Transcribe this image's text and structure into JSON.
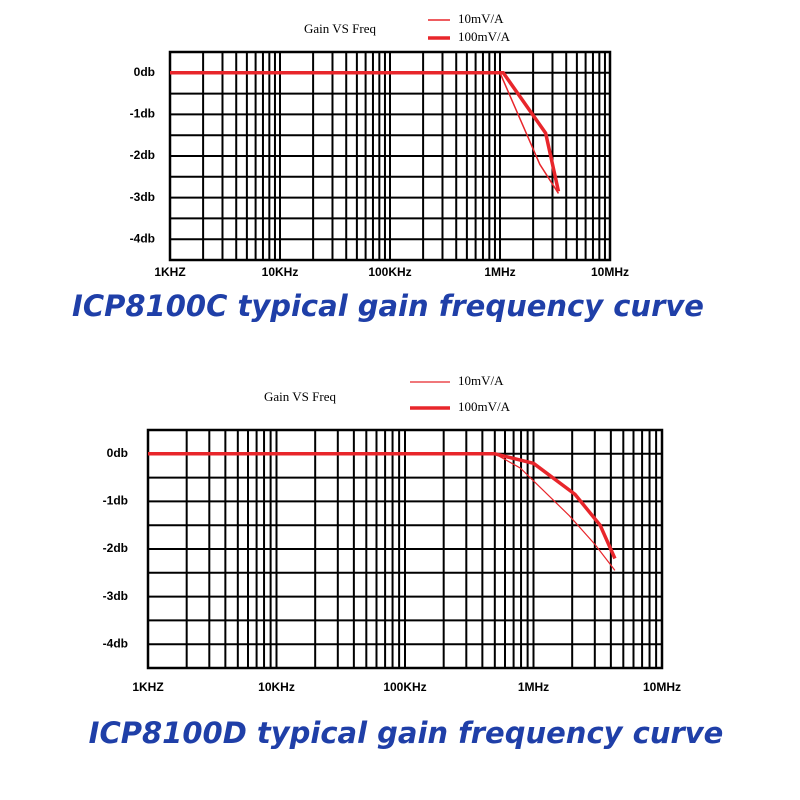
{
  "chart_data": [
    {
      "type": "line",
      "title": "Gain VS Freq",
      "caption": "ICP8100C typical gain frequency curve",
      "xscale": "log",
      "grid": true,
      "xlim": [
        1000,
        10000000
      ],
      "ylim": [
        -4.5,
        0.5
      ],
      "xticks": [
        {
          "value": 1000,
          "label": "1KHZ"
        },
        {
          "value": 10000,
          "label": "10KHz"
        },
        {
          "value": 100000,
          "label": "100KHz"
        },
        {
          "value": 1000000,
          "label": "1MHz"
        },
        {
          "value": 10000000,
          "label": "10MHz"
        }
      ],
      "x_minor_ticks": [
        2000,
        3000,
        4000,
        5000,
        6000,
        7000,
        8000,
        9000,
        20000,
        30000,
        40000,
        50000,
        60000,
        70000,
        80000,
        90000,
        200000,
        300000,
        400000,
        500000,
        600000,
        700000,
        800000,
        900000,
        2000000,
        3000000,
        4000000,
        5000000,
        6000000,
        7000000,
        8000000,
        9000000
      ],
      "yticks": [
        {
          "value": 0,
          "label": "0db"
        },
        {
          "value": -1,
          "label": "-1db"
        },
        {
          "value": -2,
          "label": "-2db"
        },
        {
          "value": -3,
          "label": "-3db"
        },
        {
          "value": -4,
          "label": "-4db"
        }
      ],
      "y_minor_ticks": [
        0.5,
        -0.5,
        -1.5,
        -2.5,
        -3.5,
        -4.5
      ],
      "series": [
        {
          "name": "10mV/A",
          "color": "#e8262b",
          "width": 1.5,
          "x": [
            1000,
            1000000,
            2300000,
            3400000
          ],
          "values": [
            0,
            0,
            -2.2,
            -2.9
          ]
        },
        {
          "name": "100mV/A",
          "color": "#e8262b",
          "width": 3.5,
          "x": [
            1000,
            1070000,
            2600000,
            3400000
          ],
          "values": [
            0,
            0,
            -1.45,
            -2.85
          ]
        }
      ]
    },
    {
      "type": "line",
      "title": "Gain VS Freq",
      "caption": "ICP8100D typical gain frequency curve",
      "xscale": "log",
      "grid": true,
      "xlim": [
        1000,
        10000000
      ],
      "ylim": [
        -4.5,
        0.5
      ],
      "xticks": [
        {
          "value": 1000,
          "label": "1KHZ"
        },
        {
          "value": 10000,
          "label": "10KHz"
        },
        {
          "value": 100000,
          "label": "100KHz"
        },
        {
          "value": 1000000,
          "label": "1MHz"
        },
        {
          "value": 10000000,
          "label": "10MHz"
        }
      ],
      "x_minor_ticks": [
        2000,
        3000,
        4000,
        5000,
        6000,
        7000,
        8000,
        9000,
        20000,
        30000,
        40000,
        50000,
        60000,
        70000,
        80000,
        90000,
        200000,
        300000,
        400000,
        500000,
        600000,
        700000,
        800000,
        900000,
        2000000,
        3000000,
        4000000,
        5000000,
        6000000,
        7000000,
        8000000,
        9000000
      ],
      "yticks": [
        {
          "value": 0,
          "label": "0db"
        },
        {
          "value": -1,
          "label": "-1db"
        },
        {
          "value": -2,
          "label": "-2db"
        },
        {
          "value": -3,
          "label": "-3db"
        },
        {
          "value": -4,
          "label": "-4db"
        }
      ],
      "y_minor_ticks": [
        0.5,
        -0.5,
        -1.5,
        -2.5,
        -3.5,
        -4.5
      ],
      "series": [
        {
          "name": "10mV/A",
          "color": "#e8262b",
          "width": 1.2,
          "x": [
            1000,
            500000,
            790000,
            1900000,
            3000000,
            4300000
          ],
          "values": [
            0,
            0,
            -0.3,
            -1.3,
            -1.9,
            -2.45
          ]
        },
        {
          "name": "100mV/A",
          "color": "#e8262b",
          "width": 3.5,
          "x": [
            1000,
            500000,
            1000000,
            2100000,
            3300000,
            4300000
          ],
          "values": [
            0,
            0,
            -0.2,
            -0.85,
            -1.5,
            -2.2
          ]
        }
      ]
    }
  ]
}
